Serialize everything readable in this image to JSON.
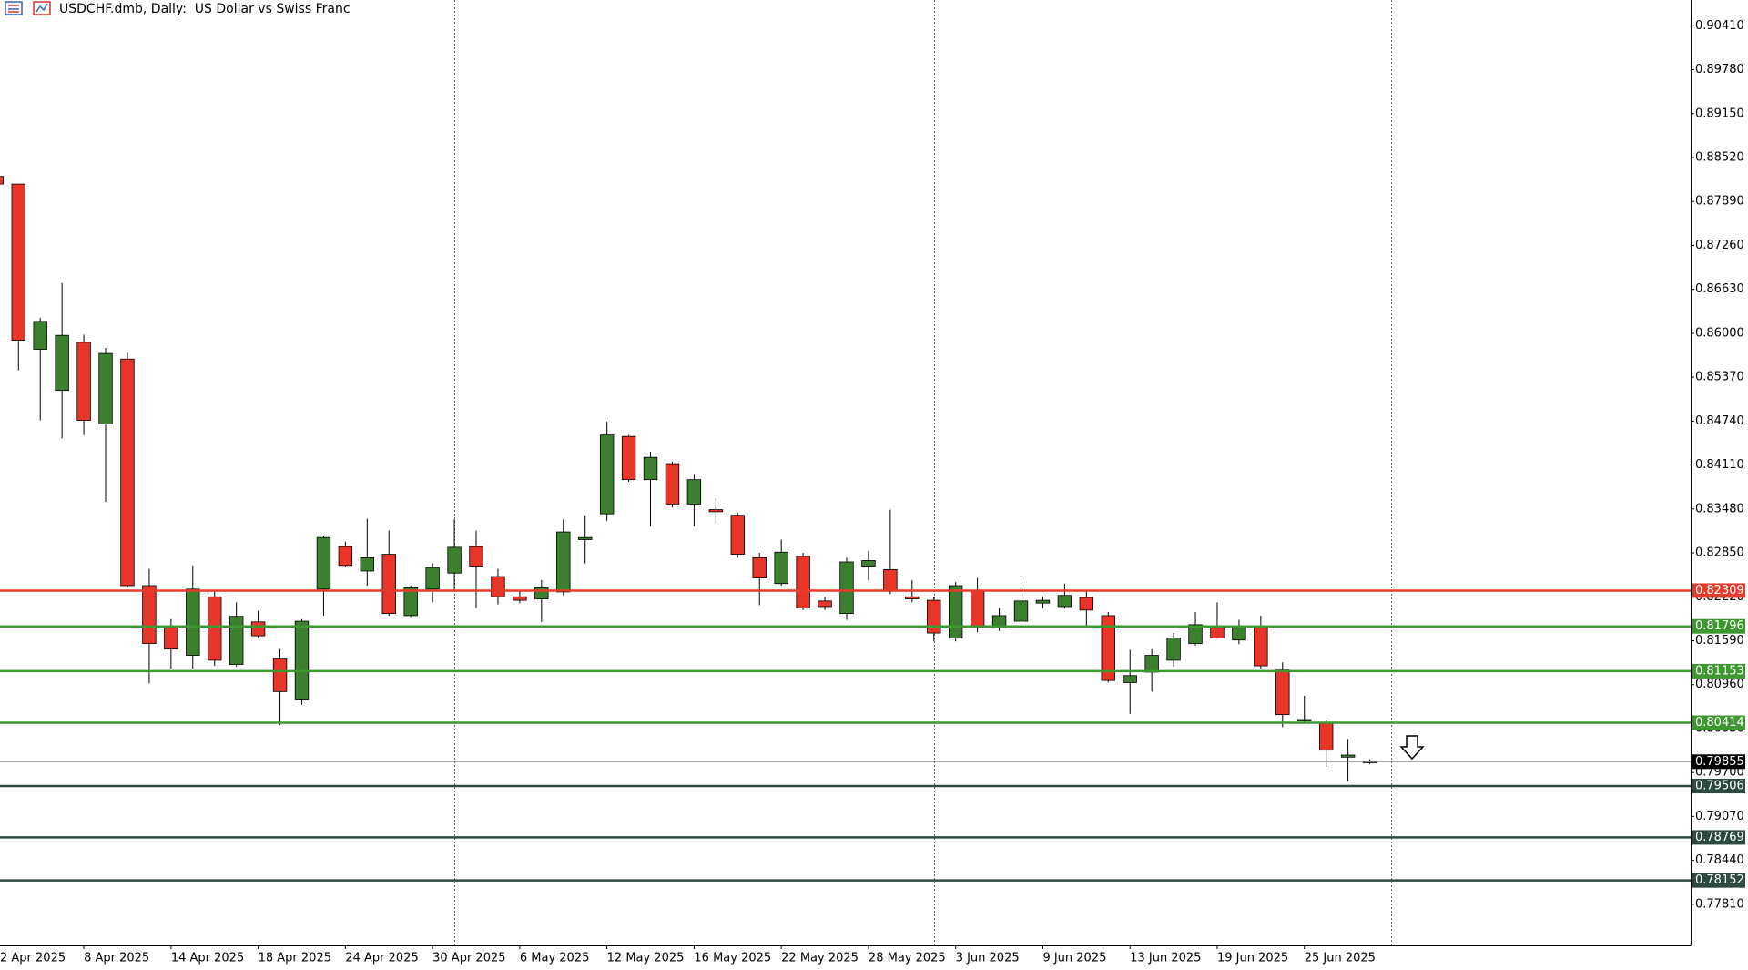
{
  "chart_data": {
    "type": "candlestick",
    "title": "USDCHF.dmb, Daily:  US Dollar vs Swiss Franc",
    "categories": [
      "2 Apr 2025",
      null,
      null,
      null,
      "8 Apr 2025",
      null,
      null,
      null,
      "14 Apr 2025",
      null,
      null,
      null,
      "18 Apr 2025",
      null,
      null,
      null,
      "24 Apr 2025",
      null,
      null,
      null,
      "30 Apr 2025",
      null,
      null,
      null,
      "6 May 2025",
      null,
      null,
      null,
      "12 May 2025",
      null,
      null,
      null,
      "16 May 2025",
      null,
      null,
      null,
      "22 May 2025",
      null,
      null,
      null,
      "28 May 2025",
      null,
      null,
      null,
      "3 Jun 2025",
      null,
      null,
      null,
      "9 Jun 2025",
      null,
      null,
      null,
      "13 Jun 2025",
      null,
      null,
      null,
      "19 Jun 2025",
      null,
      null,
      null,
      "25 Jun 2025",
      null,
      null,
      null
    ],
    "open": [
      0.8825,
      0.8814,
      0.8577,
      0.8518,
      0.8587,
      0.847,
      0.8563,
      0.8238,
      0.8178,
      0.8138,
      0.8222,
      0.8125,
      0.8186,
      0.8134,
      0.8074,
      0.8233,
      0.8294,
      0.8259,
      0.8283,
      0.8195,
      0.8233,
      0.8256,
      0.8294,
      0.8251,
      0.8222,
      0.8219,
      0.8229,
      0.8304,
      0.8341,
      0.8452,
      0.839,
      0.8413,
      0.8355,
      0.8347,
      0.8339,
      0.8278,
      0.8241,
      0.828,
      0.8216,
      0.8198,
      0.8266,
      0.8261,
      0.8222,
      0.8217,
      0.8163,
      0.823,
      0.8178,
      0.8187,
      0.8213,
      0.8208,
      0.8221,
      0.8195,
      0.8099,
      0.8114,
      0.8131,
      0.8155,
      0.8178,
      0.816,
      0.8179,
      0.8117,
      0.8045,
      0.8042,
      0.7992,
      0.7984
    ],
    "high": [
      0.883,
      0.8814,
      0.8622,
      0.8672,
      0.8598,
      0.8579,
      0.8572,
      0.8262,
      0.819,
      0.8267,
      0.823,
      0.8214,
      0.8202,
      0.8147,
      0.819,
      0.831,
      0.8301,
      0.8334,
      0.8317,
      0.8238,
      0.827,
      0.8333,
      0.8317,
      0.8262,
      0.823,
      0.8246,
      0.8333,
      0.8339,
      0.8473,
      0.8454,
      0.843,
      0.8416,
      0.8398,
      0.8363,
      0.8342,
      0.8285,
      0.8304,
      0.8285,
      0.8222,
      0.8278,
      0.8288,
      0.8347,
      0.8246,
      0.8222,
      0.8243,
      0.8249,
      0.8206,
      0.8248,
      0.8222,
      0.8241,
      0.823,
      0.82,
      0.8146,
      0.8147,
      0.817,
      0.82,
      0.8214,
      0.8189,
      0.8195,
      0.8128,
      0.808,
      0.8045,
      0.8018,
      0.7989
    ],
    "low": [
      0.8812,
      0.8547,
      0.8475,
      0.8449,
      0.8454,
      0.8358,
      0.8235,
      0.8098,
      0.8119,
      0.8119,
      0.8123,
      0.8122,
      0.8163,
      0.8038,
      0.8067,
      0.8195,
      0.8265,
      0.8238,
      0.8195,
      0.8193,
      0.8214,
      0.823,
      0.8206,
      0.8211,
      0.8213,
      0.8186,
      0.8224,
      0.827,
      0.8331,
      0.8387,
      0.8323,
      0.835,
      0.8323,
      0.8326,
      0.8278,
      0.821,
      0.8238,
      0.8203,
      0.8203,
      0.8189,
      0.8246,
      0.8226,
      0.8214,
      0.8158,
      0.8158,
      0.8171,
      0.8173,
      0.8182,
      0.8206,
      0.8205,
      0.8179,
      0.8099,
      0.8054,
      0.8086,
      0.8122,
      0.8152,
      0.8162,
      0.8154,
      0.8119,
      0.8035,
      0.804,
      0.7978,
      0.7957,
      0.7982
    ],
    "close": [
      0.8814,
      0.859,
      0.8617,
      0.8597,
      0.8475,
      0.8571,
      0.8238,
      0.8155,
      0.8147,
      0.8233,
      0.8131,
      0.8194,
      0.8166,
      0.8086,
      0.8187,
      0.8307,
      0.8267,
      0.8278,
      0.8198,
      0.8235,
      0.8264,
      0.8293,
      0.8266,
      0.8222,
      0.8217,
      0.8235,
      0.8315,
      0.8307,
      0.8454,
      0.839,
      0.8422,
      0.8355,
      0.839,
      0.8344,
      0.8283,
      0.8249,
      0.8286,
      0.8206,
      0.8208,
      0.8272,
      0.8274,
      0.823,
      0.8219,
      0.817,
      0.8238,
      0.8179,
      0.8195,
      0.8216,
      0.8217,
      0.8224,
      0.8203,
      0.8102,
      0.8109,
      0.8138,
      0.8163,
      0.8182,
      0.8163,
      0.8179,
      0.8123,
      0.8053,
      0.8046,
      0.8002,
      0.7995,
      0.7986
    ],
    "up_color": "#3c7f2e",
    "down_color": "#e8352a",
    "ylim": [
      0.7722,
      0.9078
    ],
    "yticks": [
      {
        "value": 0.9041,
        "label": "0.90410"
      },
      {
        "value": 0.8978,
        "label": "0.89780"
      },
      {
        "value": 0.8915,
        "label": "0.89150"
      },
      {
        "value": 0.8852,
        "label": "0.88520"
      },
      {
        "value": 0.8789,
        "label": "0.87890"
      },
      {
        "value": 0.8726,
        "label": "0.87260"
      },
      {
        "value": 0.8663,
        "label": "0.86630"
      },
      {
        "value": 0.86,
        "label": "0.86000"
      },
      {
        "value": 0.8537,
        "label": "0.85370"
      },
      {
        "value": 0.8474,
        "label": "0.84740"
      },
      {
        "value": 0.8411,
        "label": "0.84110"
      },
      {
        "value": 0.8348,
        "label": "0.83480"
      },
      {
        "value": 0.8285,
        "label": "0.82850"
      },
      {
        "value": 0.8222,
        "label": "0.82220"
      },
      {
        "value": 0.8159,
        "label": "0.81590"
      },
      {
        "value": 0.8096,
        "label": "0.80960"
      },
      {
        "value": 0.8033,
        "label": "0.80330"
      },
      {
        "value": 0.797,
        "label": "0.79700"
      },
      {
        "value": 0.7907,
        "label": "0.79070"
      },
      {
        "value": 0.7844,
        "label": "0.78440"
      },
      {
        "value": 0.7781,
        "label": "0.77810"
      }
    ],
    "levels": [
      {
        "value": 0.82309,
        "color": "#e53b2c"
      },
      {
        "value": 0.81796,
        "color": "#3d9830"
      },
      {
        "value": 0.81153,
        "color": "#3d9830"
      },
      {
        "value": 0.80414,
        "color": "#3d9830"
      },
      {
        "value": 0.79506,
        "color": "#2d4a40"
      },
      {
        "value": 0.78769,
        "color": "#2d4a40"
      },
      {
        "value": 0.78152,
        "color": "#2d4a40"
      }
    ],
    "current_price": {
      "value": 0.79855,
      "color": "#000000"
    }
  }
}
